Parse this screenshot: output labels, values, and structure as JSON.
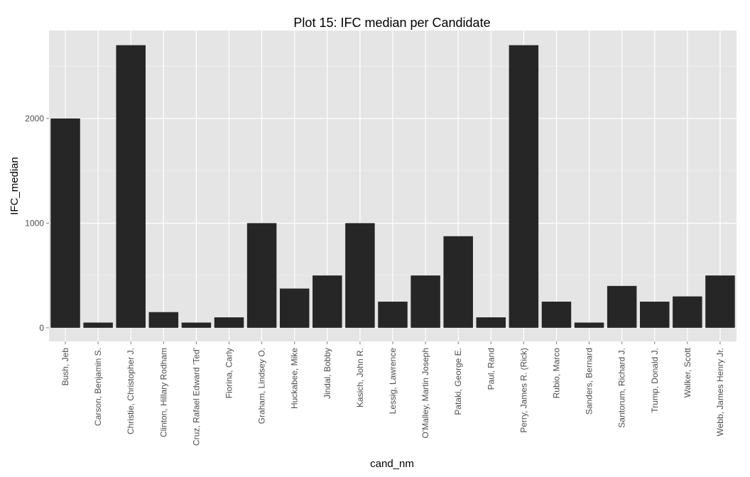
{
  "chart_data": {
    "type": "bar",
    "title": "Plot 15: IFC median per Candidate",
    "xlabel": "cand_nm",
    "ylabel": "IFC_median",
    "categories": [
      "Bush, Jeb",
      "Carson, Benjamin S.",
      "Christie, Christopher J.",
      "Clinton, Hillary Rodham",
      "Cruz, Rafael Edward 'Ted'",
      "Fiorina, Carly",
      "Graham, Lindsey O.",
      "Huckabee, Mike",
      "Jindal, Bobby",
      "Kasich, John R.",
      "Lessig, Lawrence",
      "O'Malley, Martin Joseph",
      "Pataki, George E.",
      "Paul, Rand",
      "Perry, James R. (Rick)",
      "Rubio, Marco",
      "Sanders, Bernard",
      "Santorum, Richard J.",
      "Trump, Donald J.",
      "Walker, Scott",
      "Webb, James Henry Jr."
    ],
    "values": [
      2000,
      50,
      2700,
      150,
      50,
      100,
      1000,
      375,
      500,
      1000,
      250,
      500,
      875,
      100,
      2700,
      250,
      50,
      400,
      250,
      300,
      500
    ],
    "ylim": [
      -130,
      2840
    ],
    "yticks": [
      0,
      1000,
      2000
    ],
    "ytick_labels": [
      "0",
      "1000",
      "2000"
    ],
    "grid": true,
    "colors": {
      "panel_background": "#e5e5e5",
      "bar_fill": "#262626",
      "grid_major": "#ffffff"
    }
  }
}
